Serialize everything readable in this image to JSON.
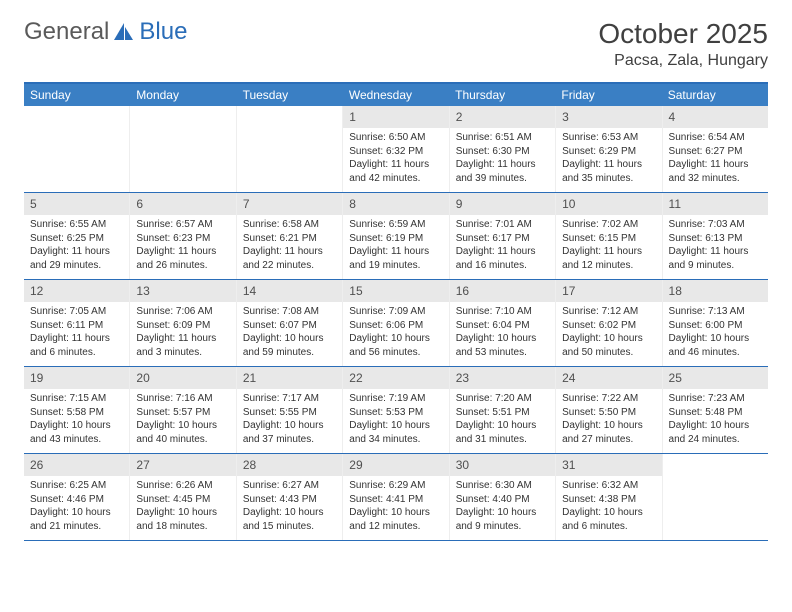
{
  "logo": {
    "text1": "General",
    "text2": "Blue"
  },
  "header": {
    "month_title": "October 2025",
    "location": "Pacsa, Zala, Hungary"
  },
  "colors": {
    "header_bar": "#3a7fc4",
    "border": "#2a6db8",
    "daynum_bg": "#e8e8e8",
    "text": "#333333",
    "background": "#ffffff"
  },
  "weekdays": [
    "Sunday",
    "Monday",
    "Tuesday",
    "Wednesday",
    "Thursday",
    "Friday",
    "Saturday"
  ],
  "weeks": [
    [
      {
        "n": "",
        "sunrise": "",
        "sunset": "",
        "daylight": ""
      },
      {
        "n": "",
        "sunrise": "",
        "sunset": "",
        "daylight": ""
      },
      {
        "n": "",
        "sunrise": "",
        "sunset": "",
        "daylight": ""
      },
      {
        "n": "1",
        "sunrise": "Sunrise: 6:50 AM",
        "sunset": "Sunset: 6:32 PM",
        "daylight": "Daylight: 11 hours and 42 minutes."
      },
      {
        "n": "2",
        "sunrise": "Sunrise: 6:51 AM",
        "sunset": "Sunset: 6:30 PM",
        "daylight": "Daylight: 11 hours and 39 minutes."
      },
      {
        "n": "3",
        "sunrise": "Sunrise: 6:53 AM",
        "sunset": "Sunset: 6:29 PM",
        "daylight": "Daylight: 11 hours and 35 minutes."
      },
      {
        "n": "4",
        "sunrise": "Sunrise: 6:54 AM",
        "sunset": "Sunset: 6:27 PM",
        "daylight": "Daylight: 11 hours and 32 minutes."
      }
    ],
    [
      {
        "n": "5",
        "sunrise": "Sunrise: 6:55 AM",
        "sunset": "Sunset: 6:25 PM",
        "daylight": "Daylight: 11 hours and 29 minutes."
      },
      {
        "n": "6",
        "sunrise": "Sunrise: 6:57 AM",
        "sunset": "Sunset: 6:23 PM",
        "daylight": "Daylight: 11 hours and 26 minutes."
      },
      {
        "n": "7",
        "sunrise": "Sunrise: 6:58 AM",
        "sunset": "Sunset: 6:21 PM",
        "daylight": "Daylight: 11 hours and 22 minutes."
      },
      {
        "n": "8",
        "sunrise": "Sunrise: 6:59 AM",
        "sunset": "Sunset: 6:19 PM",
        "daylight": "Daylight: 11 hours and 19 minutes."
      },
      {
        "n": "9",
        "sunrise": "Sunrise: 7:01 AM",
        "sunset": "Sunset: 6:17 PM",
        "daylight": "Daylight: 11 hours and 16 minutes."
      },
      {
        "n": "10",
        "sunrise": "Sunrise: 7:02 AM",
        "sunset": "Sunset: 6:15 PM",
        "daylight": "Daylight: 11 hours and 12 minutes."
      },
      {
        "n": "11",
        "sunrise": "Sunrise: 7:03 AM",
        "sunset": "Sunset: 6:13 PM",
        "daylight": "Daylight: 11 hours and 9 minutes."
      }
    ],
    [
      {
        "n": "12",
        "sunrise": "Sunrise: 7:05 AM",
        "sunset": "Sunset: 6:11 PM",
        "daylight": "Daylight: 11 hours and 6 minutes."
      },
      {
        "n": "13",
        "sunrise": "Sunrise: 7:06 AM",
        "sunset": "Sunset: 6:09 PM",
        "daylight": "Daylight: 11 hours and 3 minutes."
      },
      {
        "n": "14",
        "sunrise": "Sunrise: 7:08 AM",
        "sunset": "Sunset: 6:07 PM",
        "daylight": "Daylight: 10 hours and 59 minutes."
      },
      {
        "n": "15",
        "sunrise": "Sunrise: 7:09 AM",
        "sunset": "Sunset: 6:06 PM",
        "daylight": "Daylight: 10 hours and 56 minutes."
      },
      {
        "n": "16",
        "sunrise": "Sunrise: 7:10 AM",
        "sunset": "Sunset: 6:04 PM",
        "daylight": "Daylight: 10 hours and 53 minutes."
      },
      {
        "n": "17",
        "sunrise": "Sunrise: 7:12 AM",
        "sunset": "Sunset: 6:02 PM",
        "daylight": "Daylight: 10 hours and 50 minutes."
      },
      {
        "n": "18",
        "sunrise": "Sunrise: 7:13 AM",
        "sunset": "Sunset: 6:00 PM",
        "daylight": "Daylight: 10 hours and 46 minutes."
      }
    ],
    [
      {
        "n": "19",
        "sunrise": "Sunrise: 7:15 AM",
        "sunset": "Sunset: 5:58 PM",
        "daylight": "Daylight: 10 hours and 43 minutes."
      },
      {
        "n": "20",
        "sunrise": "Sunrise: 7:16 AM",
        "sunset": "Sunset: 5:57 PM",
        "daylight": "Daylight: 10 hours and 40 minutes."
      },
      {
        "n": "21",
        "sunrise": "Sunrise: 7:17 AM",
        "sunset": "Sunset: 5:55 PM",
        "daylight": "Daylight: 10 hours and 37 minutes."
      },
      {
        "n": "22",
        "sunrise": "Sunrise: 7:19 AM",
        "sunset": "Sunset: 5:53 PM",
        "daylight": "Daylight: 10 hours and 34 minutes."
      },
      {
        "n": "23",
        "sunrise": "Sunrise: 7:20 AM",
        "sunset": "Sunset: 5:51 PM",
        "daylight": "Daylight: 10 hours and 31 minutes."
      },
      {
        "n": "24",
        "sunrise": "Sunrise: 7:22 AM",
        "sunset": "Sunset: 5:50 PM",
        "daylight": "Daylight: 10 hours and 27 minutes."
      },
      {
        "n": "25",
        "sunrise": "Sunrise: 7:23 AM",
        "sunset": "Sunset: 5:48 PM",
        "daylight": "Daylight: 10 hours and 24 minutes."
      }
    ],
    [
      {
        "n": "26",
        "sunrise": "Sunrise: 6:25 AM",
        "sunset": "Sunset: 4:46 PM",
        "daylight": "Daylight: 10 hours and 21 minutes."
      },
      {
        "n": "27",
        "sunrise": "Sunrise: 6:26 AM",
        "sunset": "Sunset: 4:45 PM",
        "daylight": "Daylight: 10 hours and 18 minutes."
      },
      {
        "n": "28",
        "sunrise": "Sunrise: 6:27 AM",
        "sunset": "Sunset: 4:43 PM",
        "daylight": "Daylight: 10 hours and 15 minutes."
      },
      {
        "n": "29",
        "sunrise": "Sunrise: 6:29 AM",
        "sunset": "Sunset: 4:41 PM",
        "daylight": "Daylight: 10 hours and 12 minutes."
      },
      {
        "n": "30",
        "sunrise": "Sunrise: 6:30 AM",
        "sunset": "Sunset: 4:40 PM",
        "daylight": "Daylight: 10 hours and 9 minutes."
      },
      {
        "n": "31",
        "sunrise": "Sunrise: 6:32 AM",
        "sunset": "Sunset: 4:38 PM",
        "daylight": "Daylight: 10 hours and 6 minutes."
      },
      {
        "n": "",
        "sunrise": "",
        "sunset": "",
        "daylight": ""
      }
    ]
  ]
}
